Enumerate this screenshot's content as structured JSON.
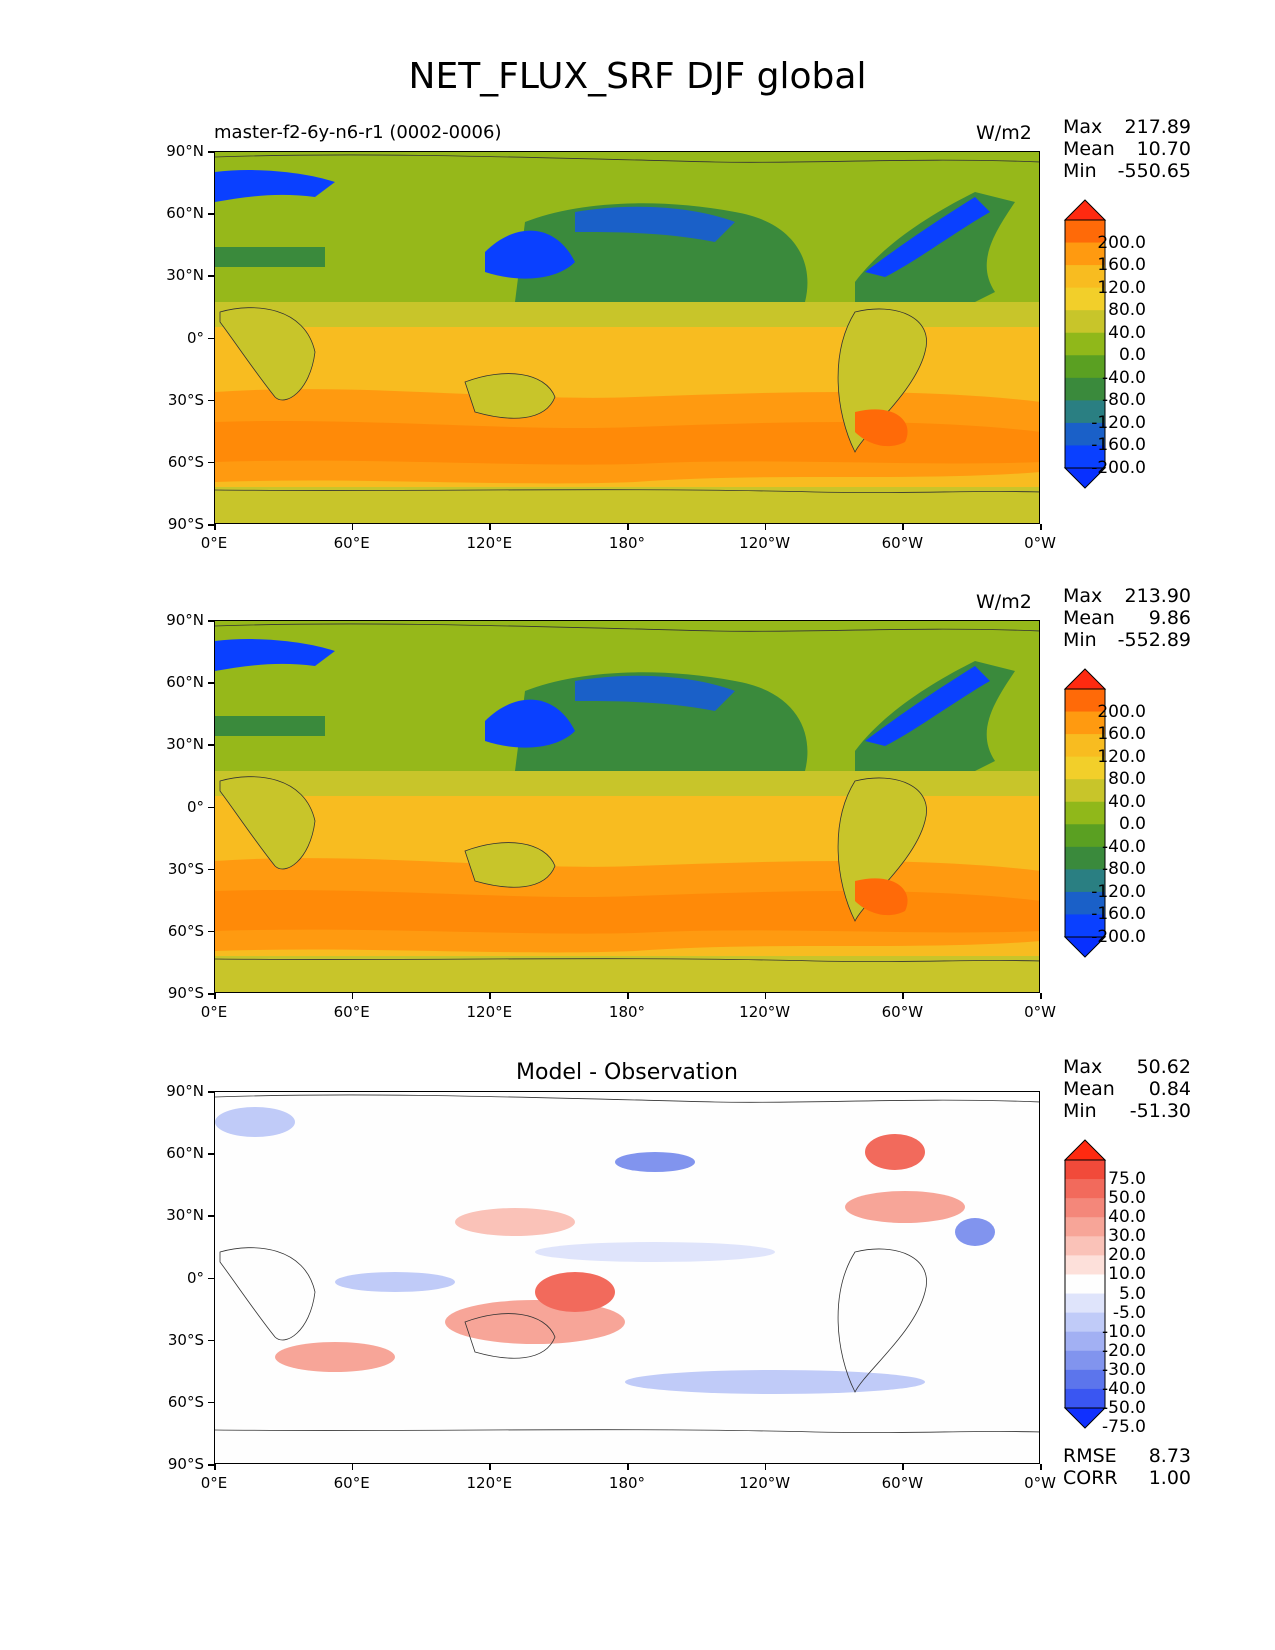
{
  "title": "NET_FLUX_SRF DJF global",
  "panels": [
    {
      "subtitle_left": "master-f2-6y-n6-r1 (0002-0006)",
      "subtitle_center": "",
      "units": "W/m2",
      "stats": {
        "max_label": "Max",
        "max": "217.89",
        "mean_label": "Mean",
        "mean": "10.70",
        "min_label": "Min",
        "min": "-550.65"
      }
    },
    {
      "subtitle_left": "",
      "subtitle_center": "",
      "units": "W/m2",
      "stats": {
        "max_label": "Max",
        "max": "213.90",
        "mean_label": "Mean",
        "mean": "9.86",
        "min_label": "Min",
        "min": "-552.89"
      }
    },
    {
      "subtitle_left": "",
      "subtitle_center": "Model - Observation",
      "units": "",
      "stats": {
        "max_label": "Max",
        "max": "50.62",
        "mean_label": "Mean",
        "mean": "0.84",
        "min_label": "Min",
        "min": "-51.30"
      },
      "extra": {
        "rmse_label": "RMSE",
        "rmse": "8.73",
        "corr_label": "CORR",
        "corr": "1.00"
      }
    }
  ],
  "axes": {
    "lat_labels": [
      "90°N",
      "60°N",
      "30°N",
      "0°",
      "30°S",
      "60°S",
      "90°S"
    ],
    "lon_labels": [
      "0°E",
      "60°E",
      "120°E",
      "180°",
      "120°W",
      "60°W",
      "0°W"
    ]
  },
  "colorbar_main": {
    "labels": [
      "200.0",
      "160.0",
      "120.0",
      "80.0",
      "40.0",
      "0.0",
      "-40.0",
      "-80.0",
      "-120.0",
      "-160.0",
      "-200.0"
    ],
    "colors": [
      "#ff2a10",
      "#ff6a08",
      "#ff9a10",
      "#f8bc20",
      "#f2cf2a",
      "#c8c52a",
      "#90b81a",
      "#5aa022",
      "#3a8a3c",
      "#2a7f82",
      "#1a60c8",
      "#0a40ff",
      "#0830ff"
    ]
  },
  "colorbar_diff": {
    "labels": [
      "75.0",
      "50.0",
      "40.0",
      "30.0",
      "20.0",
      "10.0",
      "5.0",
      "-5.0",
      "-10.0",
      "-20.0",
      "-30.0",
      "-40.0",
      "-50.0",
      "-75.0"
    ],
    "colors": [
      "#ff2a10",
      "#f14a3a",
      "#f26a5c",
      "#f4877a",
      "#f7a598",
      "#fac2b8",
      "#fde0da",
      "#fefefe",
      "#dfe4fb",
      "#c0cbf8",
      "#a2b0f3",
      "#8194ee",
      "#5c75ec",
      "#3a56f2",
      "#1030ff"
    ]
  }
}
